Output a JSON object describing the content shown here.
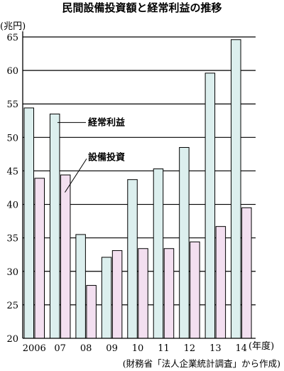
{
  "chart_data": {
    "type": "bar",
    "title": "民間設備投資額と経常利益の推移",
    "ylabel": "(兆円)",
    "xlabel": "(年度)",
    "source": "(財務省「法人企業統計調査」から作成)",
    "categories": [
      "2006",
      "07",
      "08",
      "09",
      "10",
      "11",
      "12",
      "13",
      "14"
    ],
    "ylim": [
      20,
      65
    ],
    "yticks": [
      20,
      25,
      30,
      35,
      40,
      45,
      50,
      55,
      60,
      65
    ],
    "grid": true,
    "legend_placement": "inside, upper-center annotations with leader lines",
    "series": [
      {
        "name": "経常利益",
        "color": "#dcefee",
        "values": [
          54.4,
          53.5,
          35.5,
          32.1,
          43.7,
          45.3,
          48.5,
          59.6,
          64.6
        ]
      },
      {
        "name": "設備投資",
        "color": "#f3dff0",
        "values": [
          43.9,
          44.4,
          27.9,
          33.1,
          33.4,
          33.4,
          34.4,
          36.7,
          39.5
        ]
      }
    ]
  }
}
